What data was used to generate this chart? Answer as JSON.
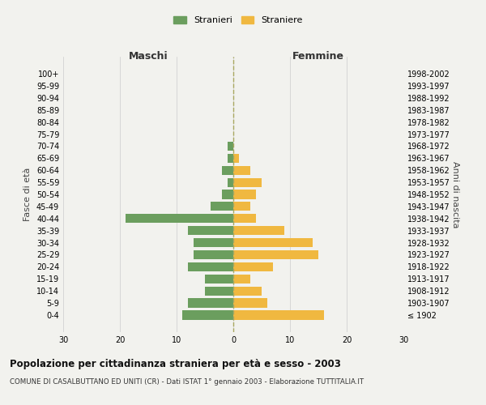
{
  "age_groups": [
    "100+",
    "95-99",
    "90-94",
    "85-89",
    "80-84",
    "75-79",
    "70-74",
    "65-69",
    "60-64",
    "55-59",
    "50-54",
    "45-49",
    "40-44",
    "35-39",
    "30-34",
    "25-29",
    "20-24",
    "15-19",
    "10-14",
    "5-9",
    "0-4"
  ],
  "birth_years": [
    "≤ 1902",
    "1903-1907",
    "1908-1912",
    "1913-1917",
    "1918-1922",
    "1923-1927",
    "1928-1932",
    "1933-1937",
    "1938-1942",
    "1943-1947",
    "1948-1952",
    "1953-1957",
    "1958-1962",
    "1963-1967",
    "1968-1972",
    "1973-1977",
    "1978-1982",
    "1983-1987",
    "1988-1992",
    "1993-1997",
    "1998-2002"
  ],
  "males": [
    0,
    0,
    0,
    0,
    0,
    0,
    1,
    1,
    2,
    1,
    2,
    4,
    19,
    8,
    7,
    7,
    8,
    5,
    5,
    8,
    9
  ],
  "females": [
    0,
    0,
    0,
    0,
    0,
    0,
    0,
    1,
    3,
    5,
    4,
    3,
    4,
    9,
    14,
    15,
    7,
    3,
    5,
    6,
    16
  ],
  "male_color": "#6b9e5e",
  "female_color": "#f0b840",
  "background_color": "#f2f2ee",
  "grid_color": "#cccccc",
  "center_line_color": "#aaa860",
  "title": "Popolazione per cittadinanza straniera per età e sesso - 2003",
  "subtitle": "COMUNE DI CASALBUTTANO ED UNITI (CR) - Dati ISTAT 1° gennaio 2003 - Elaborazione TUTTITALIA.IT",
  "xlabel_left": "Maschi",
  "xlabel_right": "Femmine",
  "ylabel_left": "Fasce di età",
  "ylabel_right": "Anni di nascita",
  "legend_male": "Stranieri",
  "legend_female": "Straniere",
  "xlim": 30
}
